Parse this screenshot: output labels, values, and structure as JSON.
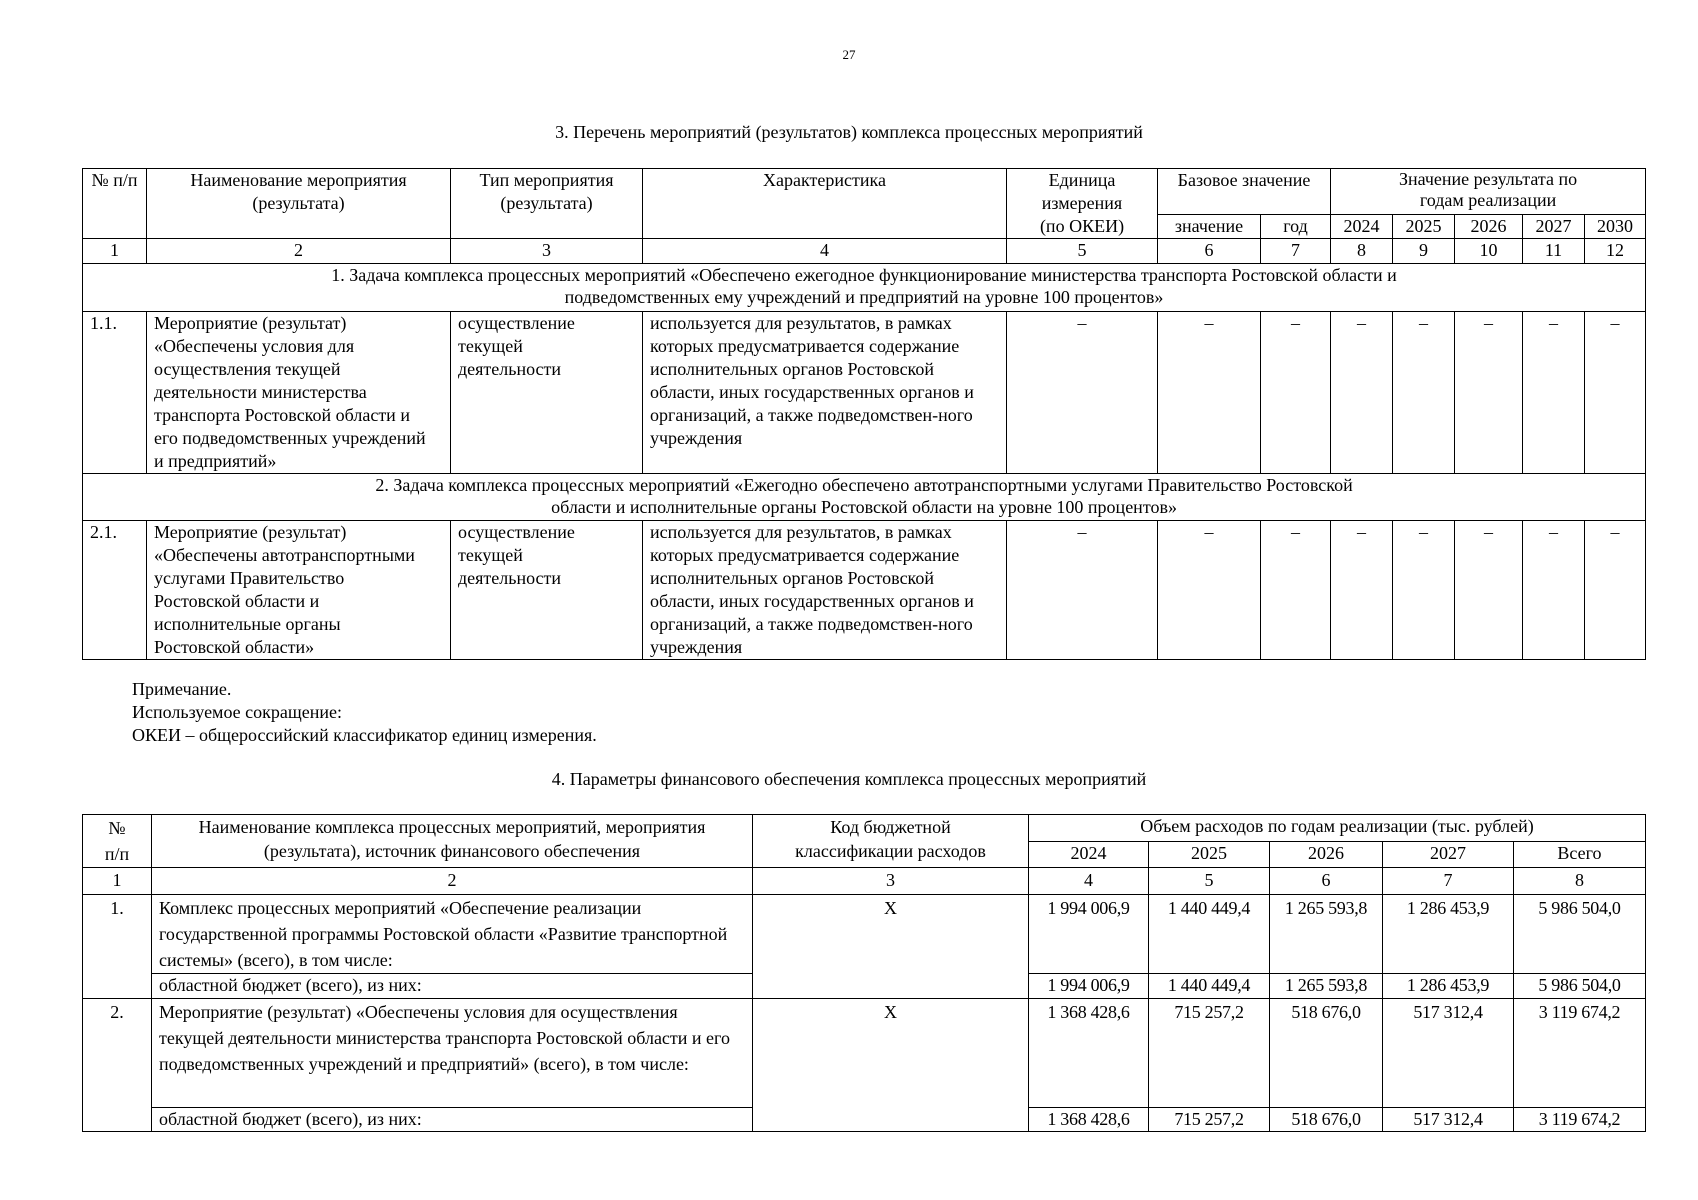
{
  "page_number": "27",
  "section3": {
    "title": "3. Перечень мероприятий (результатов) комплекса процессных мероприятий",
    "headers": {
      "num": "№ п/п",
      "name": "Наименование мероприятия (результата)",
      "type": "Тип мероприятия (результата)",
      "char": "Характеристика",
      "unit": "Единица измерения (по ОКЕИ)",
      "base": "Базовое значение",
      "base_value": "значение",
      "base_year": "год",
      "result": "Значение результата по годам реализации",
      "years": [
        "2024",
        "2025",
        "2026",
        "2027",
        "2030"
      ]
    },
    "col_numbers": [
      "1",
      "2",
      "3",
      "4",
      "5",
      "6",
      "7",
      "8",
      "9",
      "10",
      "11",
      "12"
    ],
    "task1": "1. Задача комплекса процессных мероприятий «Обеспечено ежегодное функционирование министерства транспорта Ростовской области и подведомственных ему учреждений и предприятий на уровне 100 процентов»",
    "row1": {
      "num": "1.1.",
      "name": "Мероприятие (результат) «Обеспечены условия для осуществления текущей деятельности министерства транспорта Ростовской области и его подведомственных учреждений и предприятий»",
      "type": "осуществление текущей деятельности",
      "char": "используется для результатов, в рамках которых предусматривается содержание исполнительных органов Ростовской области, иных государственных органов и организаций, а также подведомствен-ного учреждения",
      "values": [
        "–",
        "–",
        "–",
        "–",
        "–",
        "–",
        "–",
        "–"
      ]
    },
    "task2": "2. Задача комплекса процессных мероприятий «Ежегодно обеспечено автотранспортными услугами Правительство Ростовской области и исполнительные органы Ростовской области на уровне 100 процентов»",
    "row2": {
      "num": "2.1.",
      "name": "Мероприятие (результат) «Обеспечены автотранспортными услугами Правительство Ростовской области и исполнительные органы Ростовской области»",
      "type": "осуществление текущей деятельности",
      "char": "используется для результатов, в рамках которых предусматривается содержание исполнительных органов Ростовской области, иных государственных органов и организаций, а также подведомствен-ного учреждения",
      "values": [
        "–",
        "–",
        "–",
        "–",
        "–",
        "–",
        "–",
        "–"
      ]
    }
  },
  "note": {
    "line1": "Примечание.",
    "line2": "Используемое сокращение:",
    "line3": "ОКЕИ – общероссийский классификатор единиц измерения."
  },
  "section4": {
    "title": "4. Параметры финансового обеспечения комплекса процессных мероприятий",
    "headers": {
      "num": "№ п/п",
      "name": "Наименование комплекса процессных мероприятий, мероприятия (результата), источник финансового обеспечения",
      "code": "Код бюджетной классификации расходов",
      "volume": "Объем расходов по годам реализации (тыс. рублей)",
      "years": [
        "2024",
        "2025",
        "2026",
        "2027",
        "Всего"
      ]
    },
    "col_numbers": [
      "1",
      "2",
      "3",
      "4",
      "5",
      "6",
      "7",
      "8"
    ],
    "rows": [
      {
        "num": "1.",
        "name": "Комплекс процессных мероприятий «Обеспечение реализации государственной программы Ростовской области «Развитие транспортной системы» (всего), в том числе:",
        "code": "X",
        "values": [
          "1 994 006,9",
          "1 440 449,4",
          "1 265 593,8",
          "1 286 453,9",
          "5 986 504,0"
        ],
        "sub_name": "областной бюджет (всего), из них:",
        "sub_values": [
          "1 994 006,9",
          "1 440 449,4",
          "1 265 593,8",
          "1 286 453,9",
          "5 986 504,0"
        ]
      },
      {
        "num": "2.",
        "name": "Мероприятие (результат) «Обеспечены условия для осуществления текущей деятельности министерства транспорта Ростовской области и его подведомственных учреждений и предприятий» (всего), в том числе:",
        "code": "X",
        "values": [
          "1 368 428,6",
          "715 257,2",
          "518 676,0",
          "517 312,4",
          "3 119 674,2"
        ],
        "sub_name": "областной бюджет (всего), из них:",
        "sub_values": [
          "1 368 428,6",
          "715 257,2",
          "518 676,0",
          "517 312,4",
          "3 119 674,2"
        ]
      }
    ]
  }
}
